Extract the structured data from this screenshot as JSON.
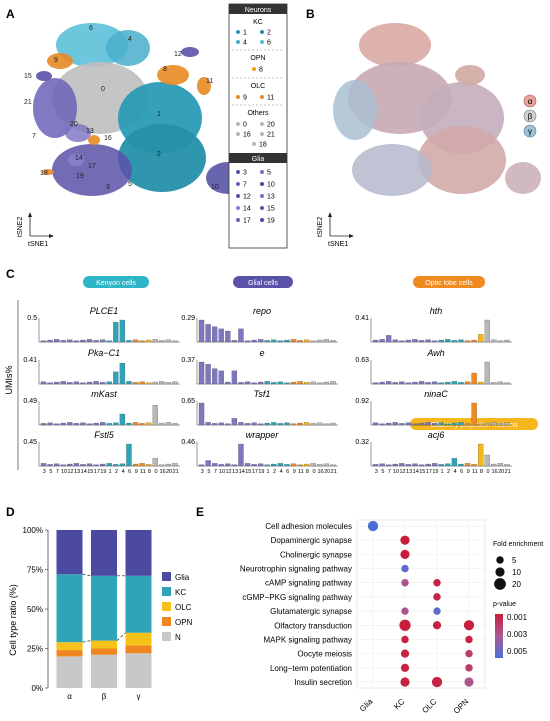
{
  "panel_labels": {
    "a": "A",
    "b": "B",
    "c": "C",
    "d": "D",
    "e": "E"
  },
  "panel_a": {
    "axis_x": "tSNE1",
    "axis_y": "tSNE2",
    "cluster_labels": [
      "6",
      "4",
      "9",
      "12",
      "8",
      "15",
      "0",
      "11",
      "21",
      "1",
      "20",
      "13",
      "16",
      "2",
      "14",
      "17",
      "18",
      "19",
      "3",
      "10",
      "7",
      "5"
    ],
    "legend": {
      "title": "Neurons",
      "groups": [
        {
          "name": "KC",
          "items": [
            "1",
            "2",
            "4",
            "6"
          ]
        },
        {
          "name": "OPN",
          "items": [
            "8"
          ]
        },
        {
          "name": "OLC",
          "items": [
            "9",
            "11"
          ]
        },
        {
          "name": "Others",
          "items": [
            "0",
            "20",
            "16",
            "21",
            "18"
          ]
        }
      ],
      "glia_title": "Glia",
      "glia_items": [
        "3",
        "5",
        "7",
        "10",
        "12",
        "13",
        "14",
        "15",
        "17",
        "19"
      ],
      "colors": {
        "KC": "#2a9bb5",
        "OPN": "#f29a1b",
        "OLC": "#e38a2a",
        "Others": "#b8b8b8",
        "Glia": "#5a52a8"
      }
    }
  },
  "panel_b": {
    "axis_x": "tSNE1",
    "axis_y": "tSNE2",
    "legend": [
      {
        "label": "α",
        "color": "#e9a39a"
      },
      {
        "label": "β",
        "color": "#cfcfcf"
      },
      {
        "label": "γ",
        "color": "#9ec1d6"
      }
    ]
  },
  "panel_c": {
    "y_label": "UMIs%",
    "x_tick_labels": [
      "3",
      "5",
      "7",
      "10",
      "12",
      "13",
      "14",
      "15",
      "17",
      "19",
      "1",
      "2",
      "4",
      "6",
      "9",
      "11",
      "8",
      "0",
      "16",
      "20",
      "21"
    ],
    "columns": [
      {
        "header": "Kenyon cells",
        "header_color": "#2fb5c8",
        "genes": [
          {
            "name": "PLCE1",
            "max": "0.5"
          },
          {
            "name": "Pka−C1",
            "max": "0.41"
          },
          {
            "name": "mKast",
            "max": "0.49"
          },
          {
            "name": "Fstl5",
            "max": "0.45"
          }
        ]
      },
      {
        "header": "Glial cells",
        "header_color": "#5a52a8",
        "genes": [
          {
            "name": "repo",
            "max": "0.29"
          },
          {
            "name": "e",
            "max": "0.37"
          },
          {
            "name": "Tsf1",
            "max": "0.65"
          },
          {
            "name": "wrapper",
            "max": "0.46"
          }
        ]
      },
      {
        "header": "Optic lobe cells",
        "header_color": "#ef8a1f",
        "genes": [
          {
            "name": "hth",
            "max": "0.41"
          },
          {
            "name": "Awh",
            "max": "0.63"
          },
          {
            "name": "ninaC",
            "max": "0.92"
          },
          {
            "name": "acj6",
            "max": "0.32"
          }
        ]
      }
    ],
    "extra_header": {
      "label": "Olfactory projection neurons",
      "color": "#f6b61d"
    }
  },
  "chart_data": [
    {
      "type": "bar",
      "title": "",
      "xlabel": "",
      "ylabel": "Cell type ratio (%)",
      "stacked": true,
      "categories": [
        "α",
        "β",
        "γ"
      ],
      "ylim": [
        0,
        100
      ],
      "yticks": [
        "0%",
        "25%",
        "50%",
        "75%",
        "100%"
      ],
      "series": [
        {
          "name": "N",
          "color": "#c8c8c8",
          "values": [
            20,
            21,
            22
          ]
        },
        {
          "name": "OPN",
          "color": "#f0861f",
          "values": [
            4,
            4,
            5
          ]
        },
        {
          "name": "OLC",
          "color": "#f6c21a",
          "values": [
            5,
            5,
            8
          ]
        },
        {
          "name": "KC",
          "color": "#2fa4b8",
          "values": [
            43,
            41,
            36
          ]
        },
        {
          "name": "Glia",
          "color": "#4c4aa0",
          "values": [
            28,
            29,
            29
          ]
        }
      ]
    },
    {
      "type": "scatter",
      "title": "",
      "x_categories": [
        "Glia",
        "KC",
        "OLC",
        "OPN"
      ],
      "y_categories": [
        "Cell adhesion molecules",
        "Dopaminergic synapse",
        "Cholinergic synapse",
        "Neurotrophin signaling pathway",
        "cAMP signaling pathway",
        "cGMP−PKG signaling pathway",
        "Glutamatergic synapse",
        "Olfactory transduction",
        "MAPK signaling pathway",
        "Oocyte meiosis",
        "Long−term potentiation",
        "Insulin secretion"
      ],
      "points": [
        {
          "x": "Glia",
          "y": "Cell adhesion molecules",
          "fold": 14,
          "p": 0.0055
        },
        {
          "x": "KC",
          "y": "Dopaminergic synapse",
          "fold": 10,
          "p": 0.0008
        },
        {
          "x": "KC",
          "y": "Cholinergic synapse",
          "fold": 10,
          "p": 0.0008
        },
        {
          "x": "KC",
          "y": "Neurotrophin signaling pathway",
          "fold": 5,
          "p": 0.005
        },
        {
          "x": "KC",
          "y": "cAMP signaling pathway",
          "fold": 5,
          "p": 0.003
        },
        {
          "x": "OLC",
          "y": "cAMP signaling pathway",
          "fold": 5,
          "p": 0.001
        },
        {
          "x": "OLC",
          "y": "cGMP−PKG signaling pathway",
          "fold": 5,
          "p": 0.001
        },
        {
          "x": "KC",
          "y": "Glutamatergic synapse",
          "fold": 5,
          "p": 0.003
        },
        {
          "x": "OLC",
          "y": "Glutamatergic synapse",
          "fold": 5,
          "p": 0.005
        },
        {
          "x": "KC",
          "y": "Olfactory transduction",
          "fold": 18,
          "p": 0.0008
        },
        {
          "x": "OLC",
          "y": "Olfactory transduction",
          "fold": 7,
          "p": 0.001
        },
        {
          "x": "OPN",
          "y": "Olfactory transduction",
          "fold": 14,
          "p": 0.001
        },
        {
          "x": "KC",
          "y": "MAPK signaling pathway",
          "fold": 5,
          "p": 0.001
        },
        {
          "x": "OPN",
          "y": "MAPK signaling pathway",
          "fold": 5,
          "p": 0.001
        },
        {
          "x": "KC",
          "y": "Oocyte meiosis",
          "fold": 7,
          "p": 0.001
        },
        {
          "x": "OPN",
          "y": "Oocyte meiosis",
          "fold": 5,
          "p": 0.002
        },
        {
          "x": "KC",
          "y": "Long−term potentiation",
          "fold": 7,
          "p": 0.001
        },
        {
          "x": "OPN",
          "y": "Long−term potentiation",
          "fold": 5,
          "p": 0.002
        },
        {
          "x": "KC",
          "y": "Insulin secretion",
          "fold": 10,
          "p": 0.001
        },
        {
          "x": "OLC",
          "y": "Insulin secretion",
          "fold": 14,
          "p": 0.001
        },
        {
          "x": "OPN",
          "y": "Insulin secretion",
          "fold": 10,
          "p": 0.003
        }
      ],
      "size_legend": {
        "title": "Fold enrichment",
        "values": [
          5,
          10,
          20
        ]
      },
      "color_legend": {
        "title": "p-value",
        "ticks": [
          "0.001",
          "0.003",
          "0.005"
        ],
        "low_color": "#c81e3c",
        "high_color": "#4a6fd4"
      }
    }
  ]
}
